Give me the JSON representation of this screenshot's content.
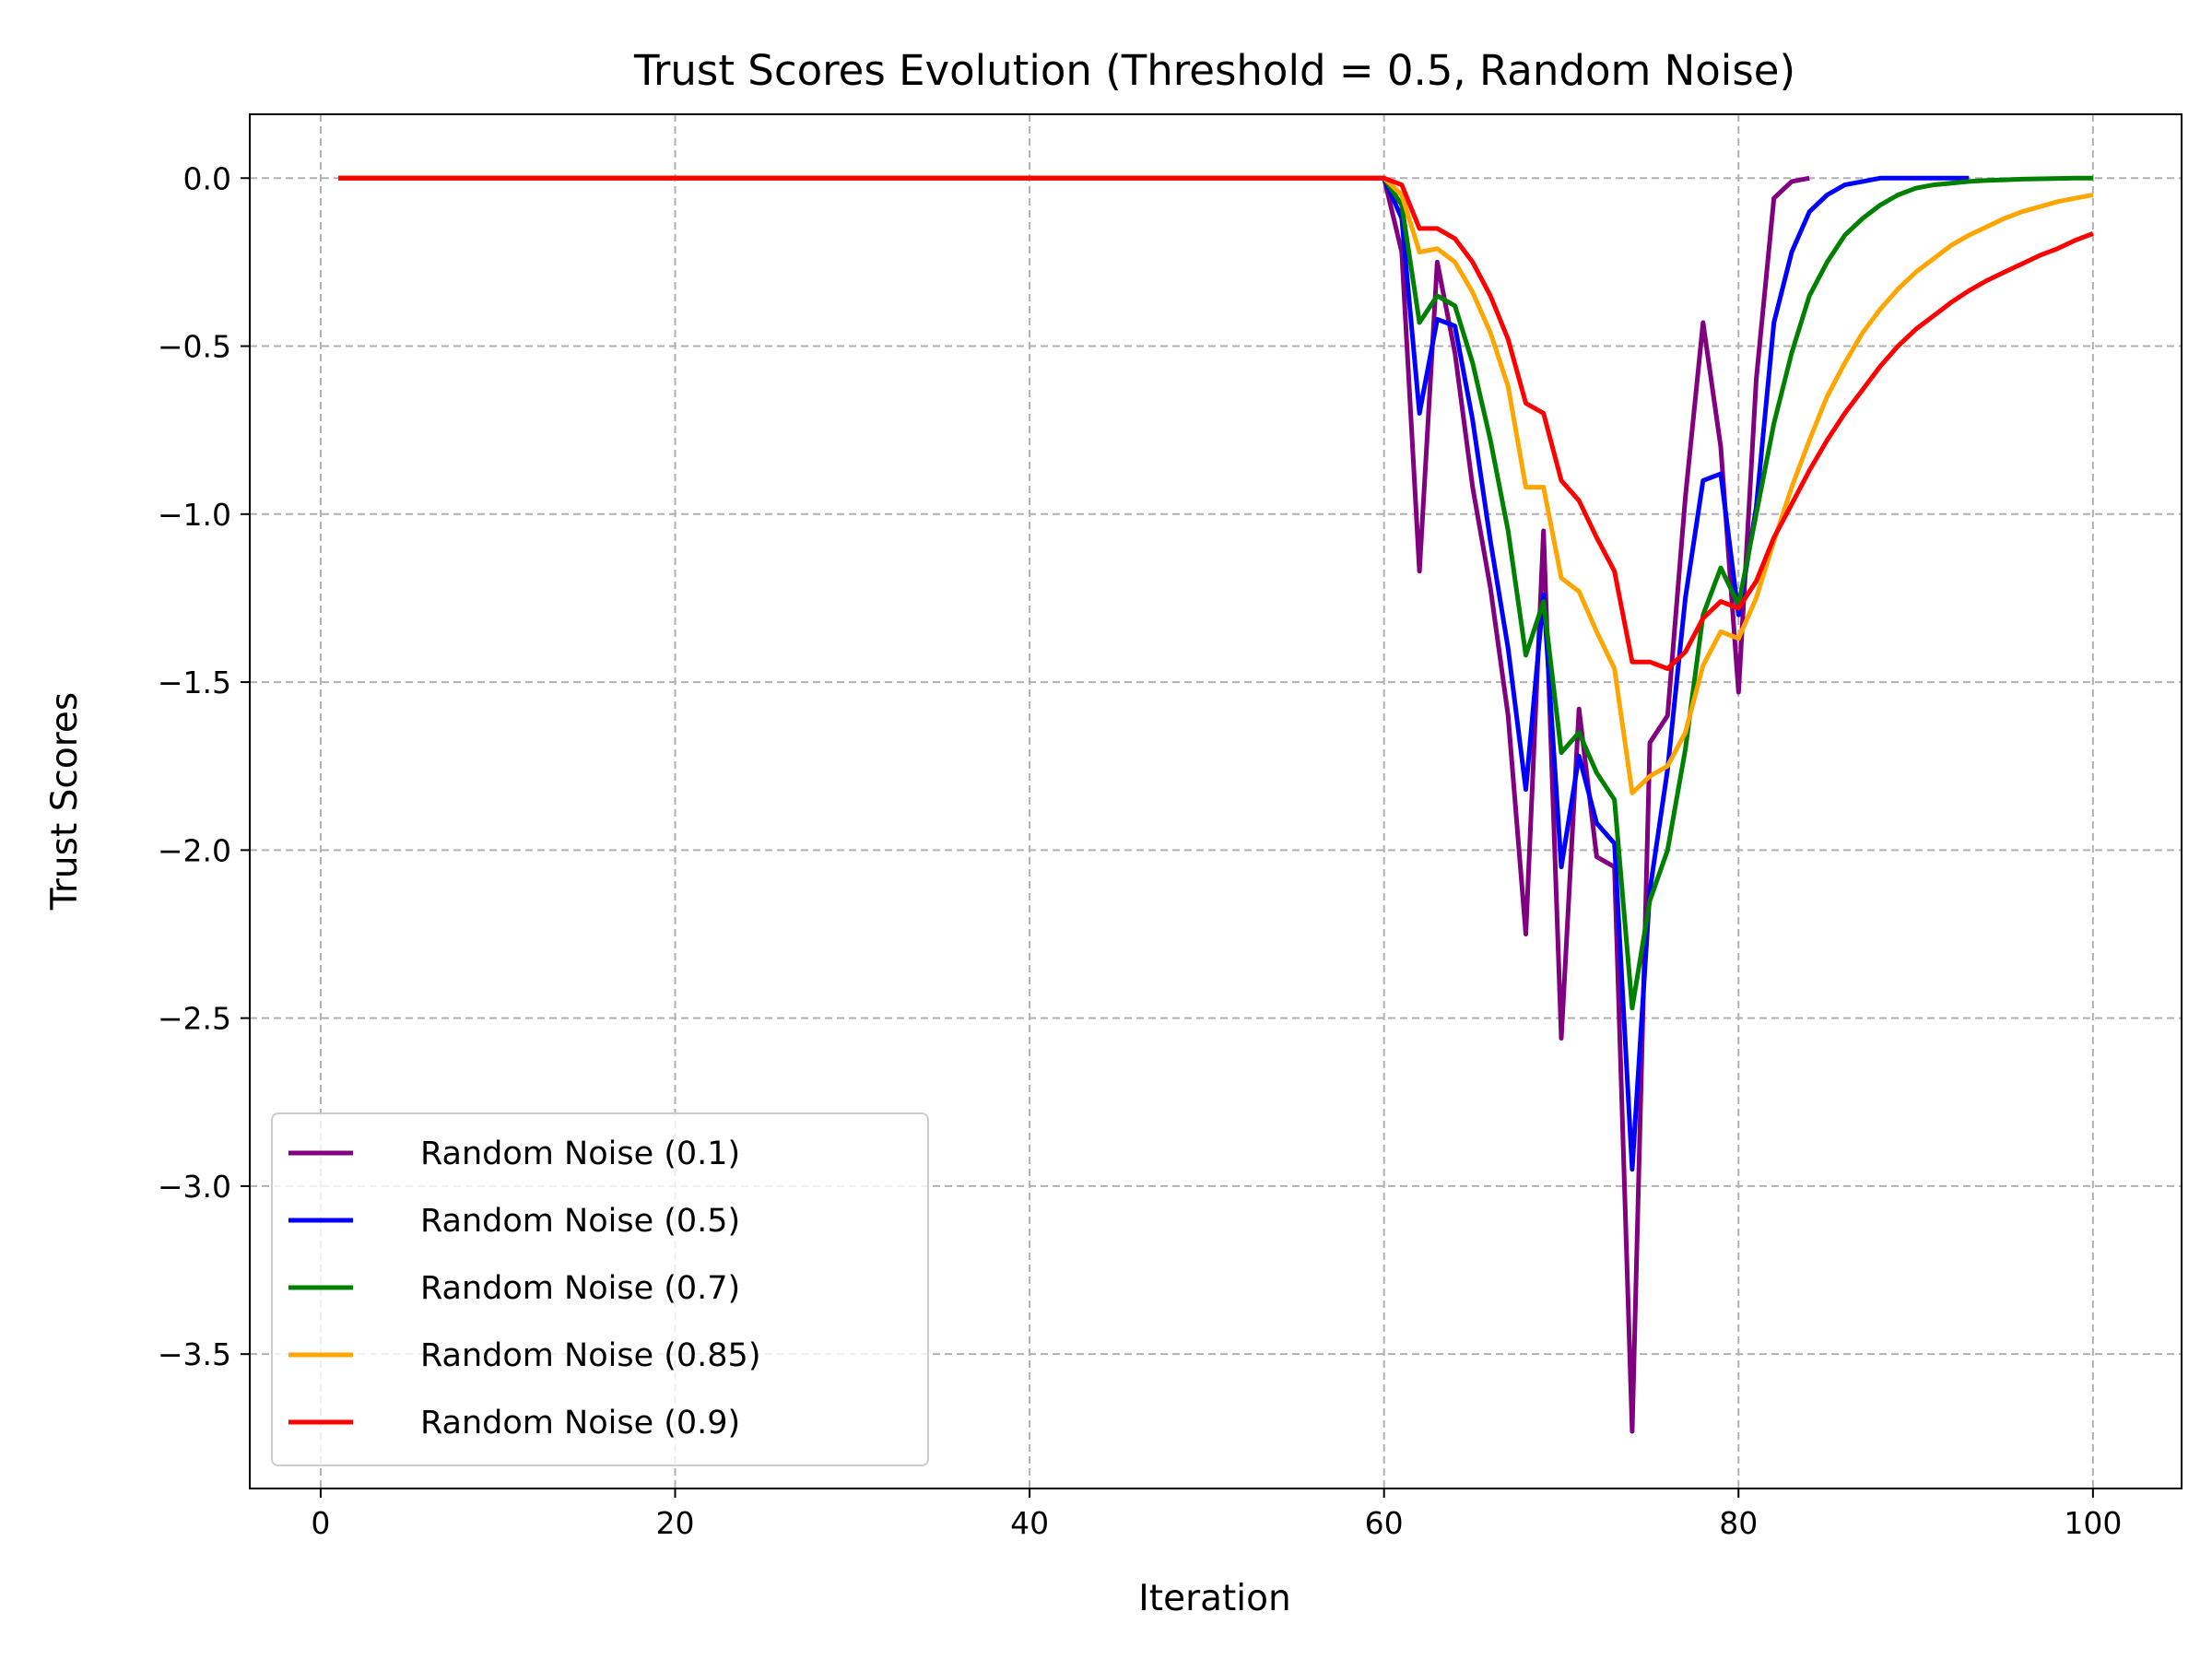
{
  "chart_data": {
    "type": "line",
    "title": "Trust Scores Evolution (Threshold = 0.5, Random Noise)",
    "xlabel": "Iteration",
    "ylabel": "Trust Scores",
    "xlim": [
      -4,
      105
    ],
    "ylim": [
      -3.9,
      0.19
    ],
    "xticks": [
      0,
      20,
      40,
      60,
      80,
      100
    ],
    "xtick_labels": [
      "0",
      "20",
      "40",
      "60",
      "80",
      "100"
    ],
    "yticks": [
      0.0,
      -0.5,
      -1.0,
      -1.5,
      -2.0,
      -2.5,
      -3.0,
      -3.5
    ],
    "ytick_labels": [
      "0.0",
      "−0.5",
      "−1.0",
      "−1.5",
      "−2.0",
      "−2.5",
      "−3.0",
      "−3.5"
    ],
    "grid": true,
    "legend_position": "lower-left",
    "series": [
      {
        "name": "Random Noise (0.1)",
        "color": "#800080",
        "x": [
          1,
          60,
          61,
          62,
          63,
          64,
          65,
          66,
          67,
          68,
          69,
          70,
          71,
          72,
          73,
          74,
          75,
          76,
          77,
          78,
          79,
          80,
          81,
          82,
          83,
          84
        ],
        "y": [
          0,
          0,
          -0.22,
          -1.17,
          -0.25,
          -0.52,
          -0.92,
          -1.22,
          -1.6,
          -2.25,
          -1.05,
          -2.56,
          -1.58,
          -2.02,
          -2.05,
          -3.73,
          -1.68,
          -1.6,
          -0.95,
          -0.43,
          -0.8,
          -1.53,
          -0.6,
          -0.06,
          -0.01,
          0.0
        ]
      },
      {
        "name": "Random Noise (0.5)",
        "color": "#0000ff",
        "x": [
          1,
          60,
          61,
          62,
          63,
          64,
          65,
          66,
          67,
          68,
          69,
          70,
          71,
          72,
          73,
          74,
          75,
          76,
          77,
          78,
          79,
          80,
          81,
          82,
          83,
          84,
          85,
          86,
          87,
          88,
          89,
          90,
          91,
          92,
          93
        ],
        "y": [
          0,
          0,
          -0.12,
          -0.7,
          -0.42,
          -0.44,
          -0.72,
          -1.08,
          -1.4,
          -1.82,
          -1.24,
          -2.05,
          -1.72,
          -1.92,
          -1.98,
          -2.95,
          -2.12,
          -1.76,
          -1.25,
          -0.9,
          -0.88,
          -1.3,
          -0.98,
          -0.43,
          -0.22,
          -0.1,
          -0.05,
          -0.02,
          -0.01,
          0.0,
          0.0,
          0.0,
          0.0,
          0.0,
          0.0
        ]
      },
      {
        "name": "Random Noise (0.7)",
        "color": "#008000",
        "x": [
          1,
          60,
          61,
          62,
          63,
          64,
          65,
          66,
          67,
          68,
          69,
          70,
          71,
          72,
          73,
          74,
          75,
          76,
          77,
          78,
          79,
          80,
          81,
          82,
          83,
          84,
          85,
          86,
          87,
          88,
          89,
          90,
          91,
          92,
          93,
          94,
          95,
          96,
          97,
          98,
          99,
          100
        ],
        "y": [
          0,
          0,
          -0.08,
          -0.43,
          -0.35,
          -0.38,
          -0.55,
          -0.78,
          -1.05,
          -1.42,
          -1.26,
          -1.71,
          -1.65,
          -1.77,
          -1.85,
          -2.47,
          -2.15,
          -2.0,
          -1.7,
          -1.3,
          -1.16,
          -1.27,
          -1.0,
          -0.73,
          -0.52,
          -0.35,
          -0.25,
          -0.17,
          -0.12,
          -0.08,
          -0.05,
          -0.03,
          -0.02,
          -0.015,
          -0.01,
          -0.007,
          -0.005,
          -0.003,
          -0.002,
          -0.001,
          0.0,
          0.0
        ]
      },
      {
        "name": "Random Noise (0.85)",
        "color": "#ffa500",
        "x": [
          1,
          60,
          61,
          62,
          63,
          64,
          65,
          66,
          67,
          68,
          69,
          70,
          71,
          72,
          73,
          74,
          75,
          76,
          77,
          78,
          79,
          80,
          81,
          82,
          83,
          84,
          85,
          86,
          87,
          88,
          89,
          90,
          91,
          92,
          93,
          94,
          95,
          96,
          97,
          98,
          99,
          100
        ],
        "y": [
          0,
          0,
          -0.05,
          -0.22,
          -0.21,
          -0.25,
          -0.34,
          -0.46,
          -0.62,
          -0.92,
          -0.92,
          -1.19,
          -1.23,
          -1.35,
          -1.46,
          -1.83,
          -1.78,
          -1.75,
          -1.65,
          -1.45,
          -1.35,
          -1.37,
          -1.25,
          -1.08,
          -0.92,
          -0.78,
          -0.65,
          -0.55,
          -0.46,
          -0.39,
          -0.33,
          -0.28,
          -0.24,
          -0.2,
          -0.17,
          -0.145,
          -0.12,
          -0.1,
          -0.085,
          -0.07,
          -0.06,
          -0.05
        ]
      },
      {
        "name": "Random Noise (0.9)",
        "color": "#ff0000",
        "x": [
          1,
          60,
          61,
          62,
          63,
          64,
          65,
          66,
          67,
          68,
          69,
          70,
          71,
          72,
          73,
          74,
          75,
          76,
          77,
          78,
          79,
          80,
          81,
          82,
          83,
          84,
          85,
          86,
          87,
          88,
          89,
          90,
          91,
          92,
          93,
          94,
          95,
          96,
          97,
          98,
          99,
          100
        ],
        "y": [
          0,
          0,
          -0.02,
          -0.15,
          -0.15,
          -0.18,
          -0.25,
          -0.35,
          -0.48,
          -0.67,
          -0.7,
          -0.9,
          -0.96,
          -1.07,
          -1.17,
          -1.44,
          -1.44,
          -1.46,
          -1.41,
          -1.31,
          -1.26,
          -1.28,
          -1.2,
          -1.07,
          -0.97,
          -0.87,
          -0.78,
          -0.7,
          -0.63,
          -0.56,
          -0.5,
          -0.45,
          -0.41,
          -0.37,
          -0.335,
          -0.305,
          -0.28,
          -0.255,
          -0.23,
          -0.21,
          -0.185,
          -0.165
        ]
      }
    ]
  }
}
